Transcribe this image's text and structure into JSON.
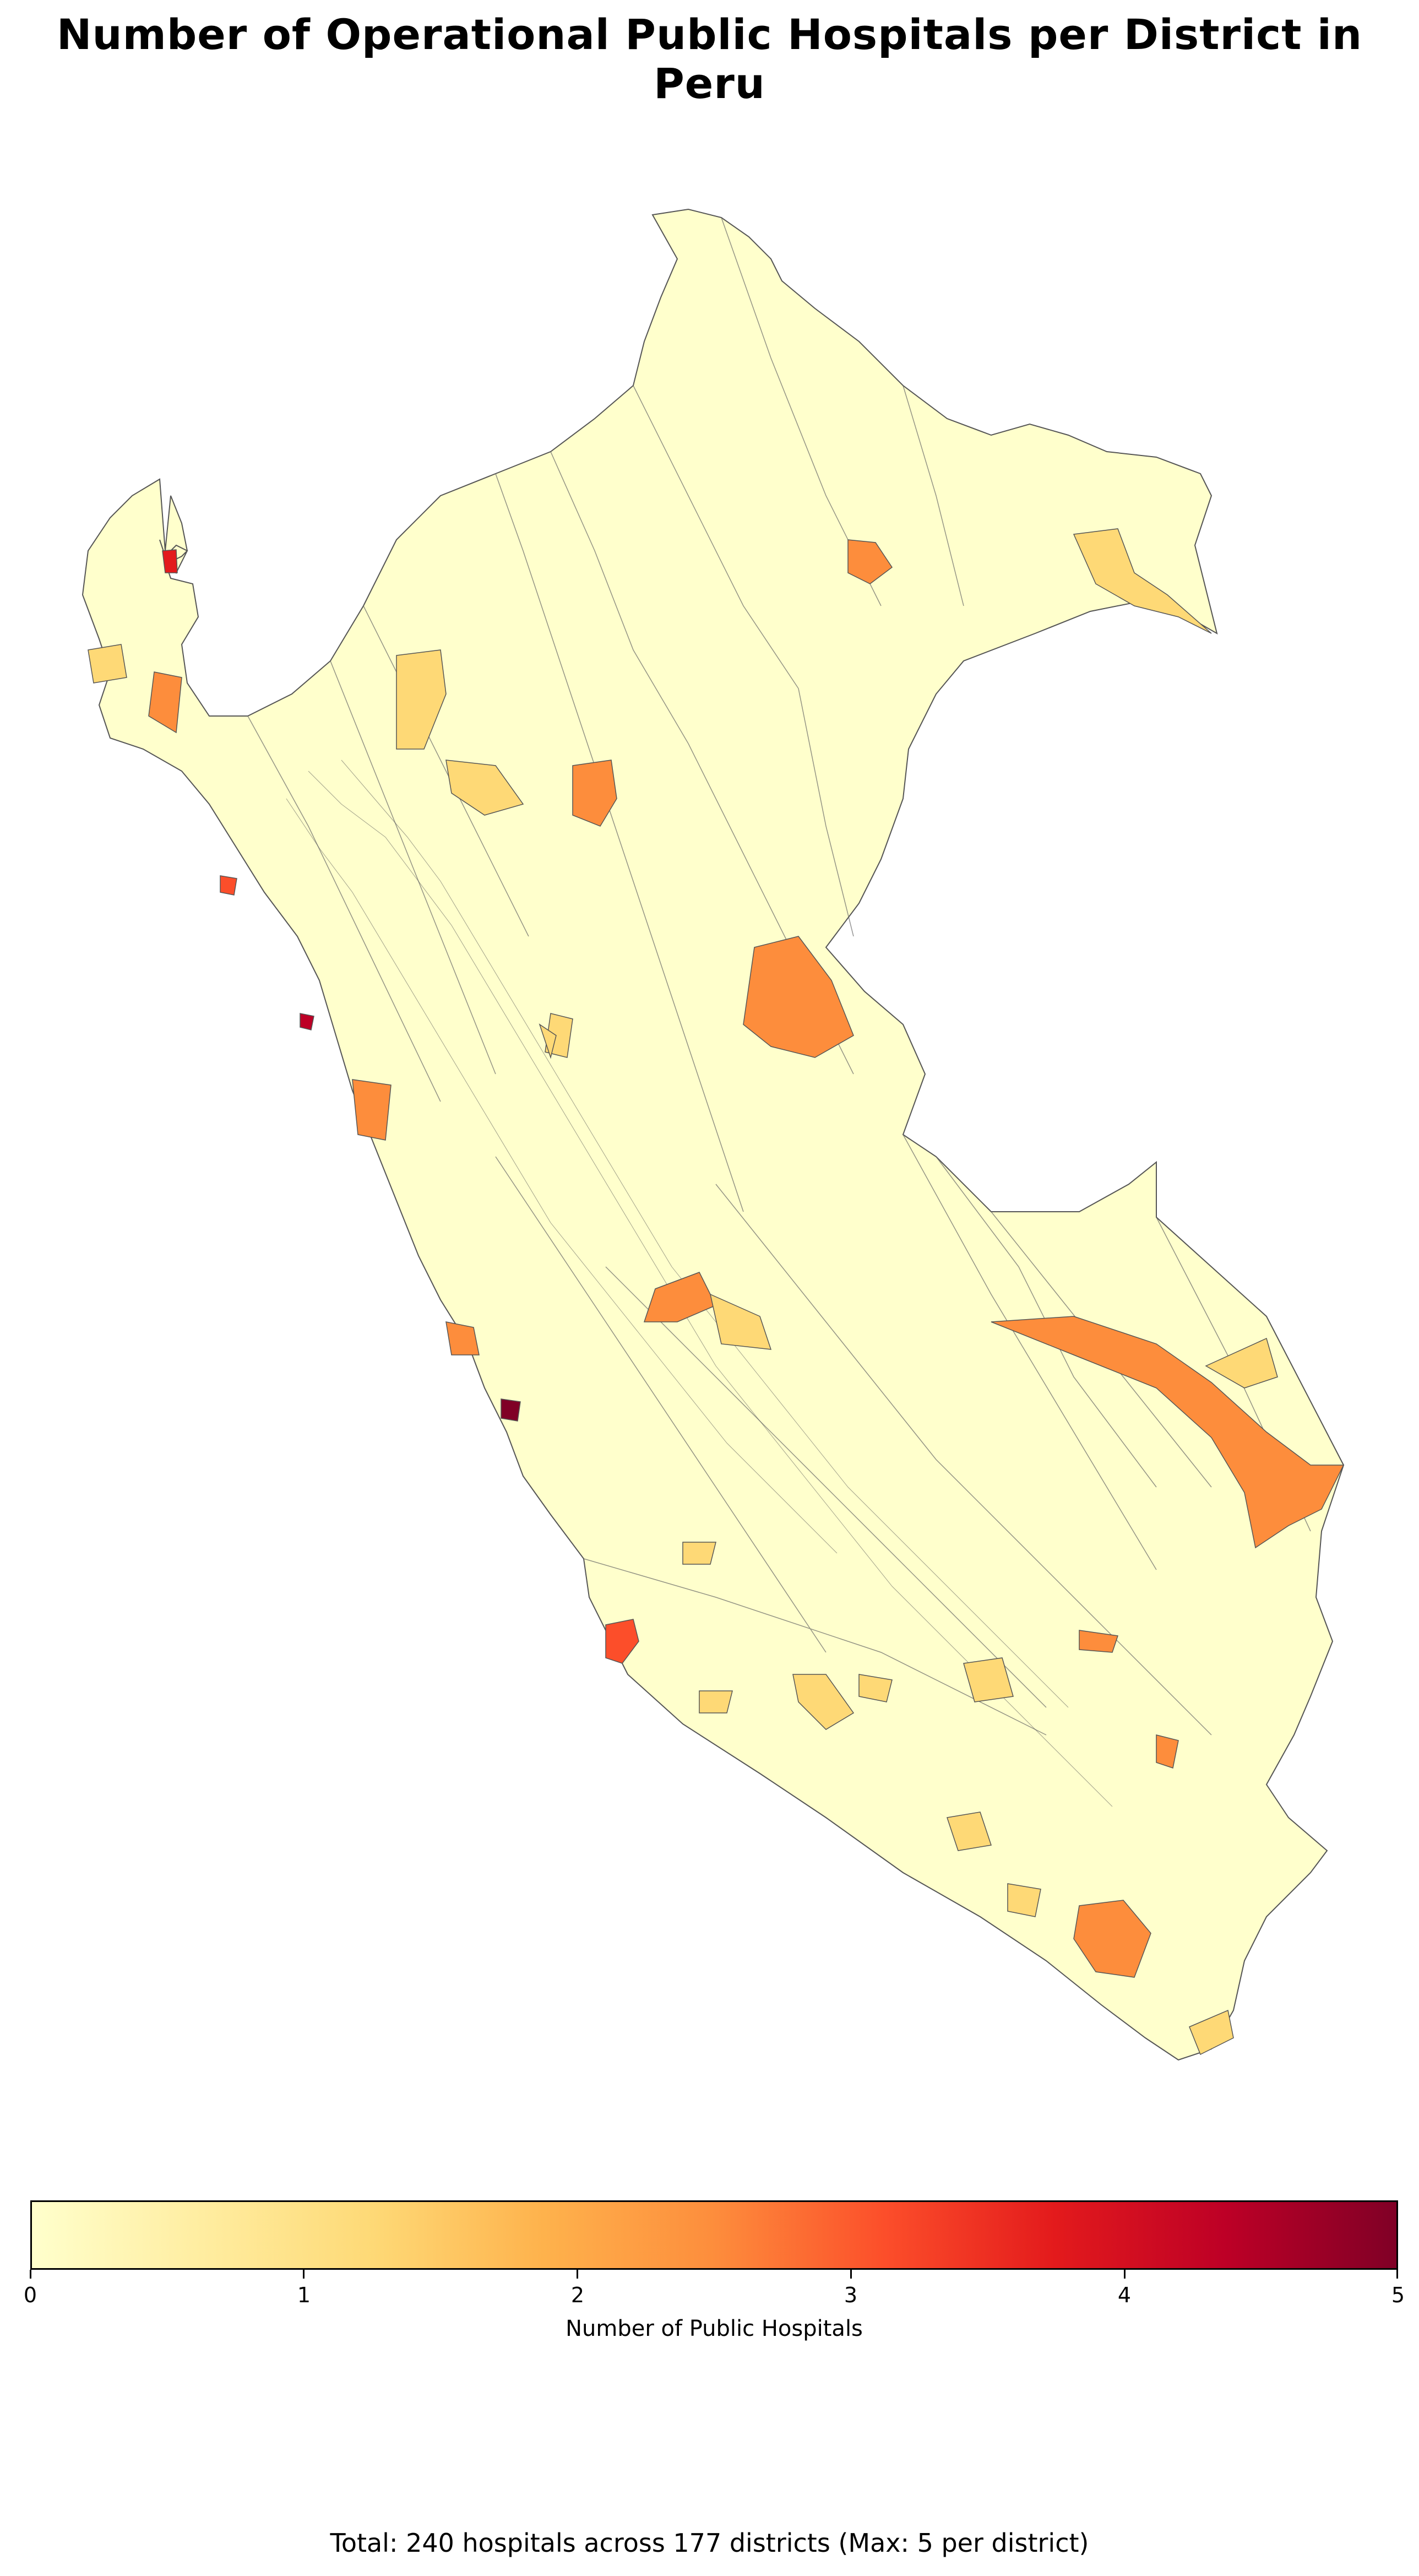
{
  "title": "Number of Operational Public Hospitals per District in Peru",
  "map": {
    "region": "Peru",
    "colormap": [
      "#ffffcc",
      "#ffeda0",
      "#fed976",
      "#feb24c",
      "#fd8d3c",
      "#fc4e2a",
      "#e31a1c",
      "#bd0026",
      "#800026"
    ],
    "boundary_color": "#555555",
    "base_fill": "#ffffcc"
  },
  "colorbar": {
    "label": "Number of Public Hospitals",
    "min": 0,
    "max": 5,
    "ticks": [
      "0",
      "1",
      "2",
      "3",
      "4",
      "5"
    ]
  },
  "footer": "Total: 240 hospitals across 177 districts (Max: 5 per district)"
}
